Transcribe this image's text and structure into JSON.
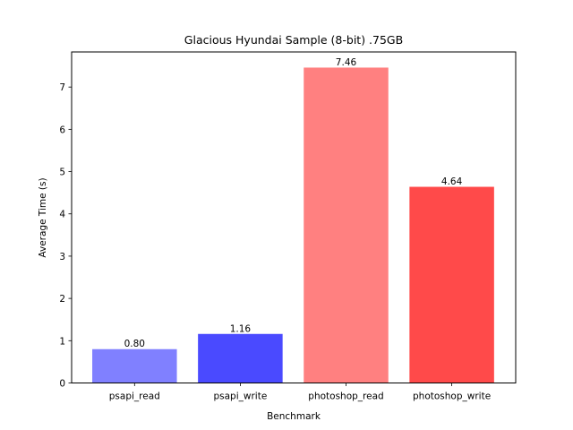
{
  "chart_data": {
    "type": "bar",
    "title": "Glacious Hyundai Sample (8-bit) .75GB",
    "xlabel": "Benchmark",
    "ylabel": "Average Time (s)",
    "categories": [
      "psapi_read",
      "psapi_write",
      "photoshop_read",
      "photoshop_write"
    ],
    "values": [
      0.8,
      1.16,
      7.46,
      4.64
    ],
    "data_labels": [
      "0.80",
      "1.16",
      "7.46",
      "4.64"
    ],
    "bar_colors": [
      "#8080ff",
      "#4a4aff",
      "#ff8080",
      "#ff4a4a"
    ],
    "ylim": [
      0,
      7.83
    ],
    "yticks": [
      0,
      1,
      2,
      3,
      4,
      5,
      6,
      7
    ],
    "grid": false,
    "legend": "none"
  }
}
